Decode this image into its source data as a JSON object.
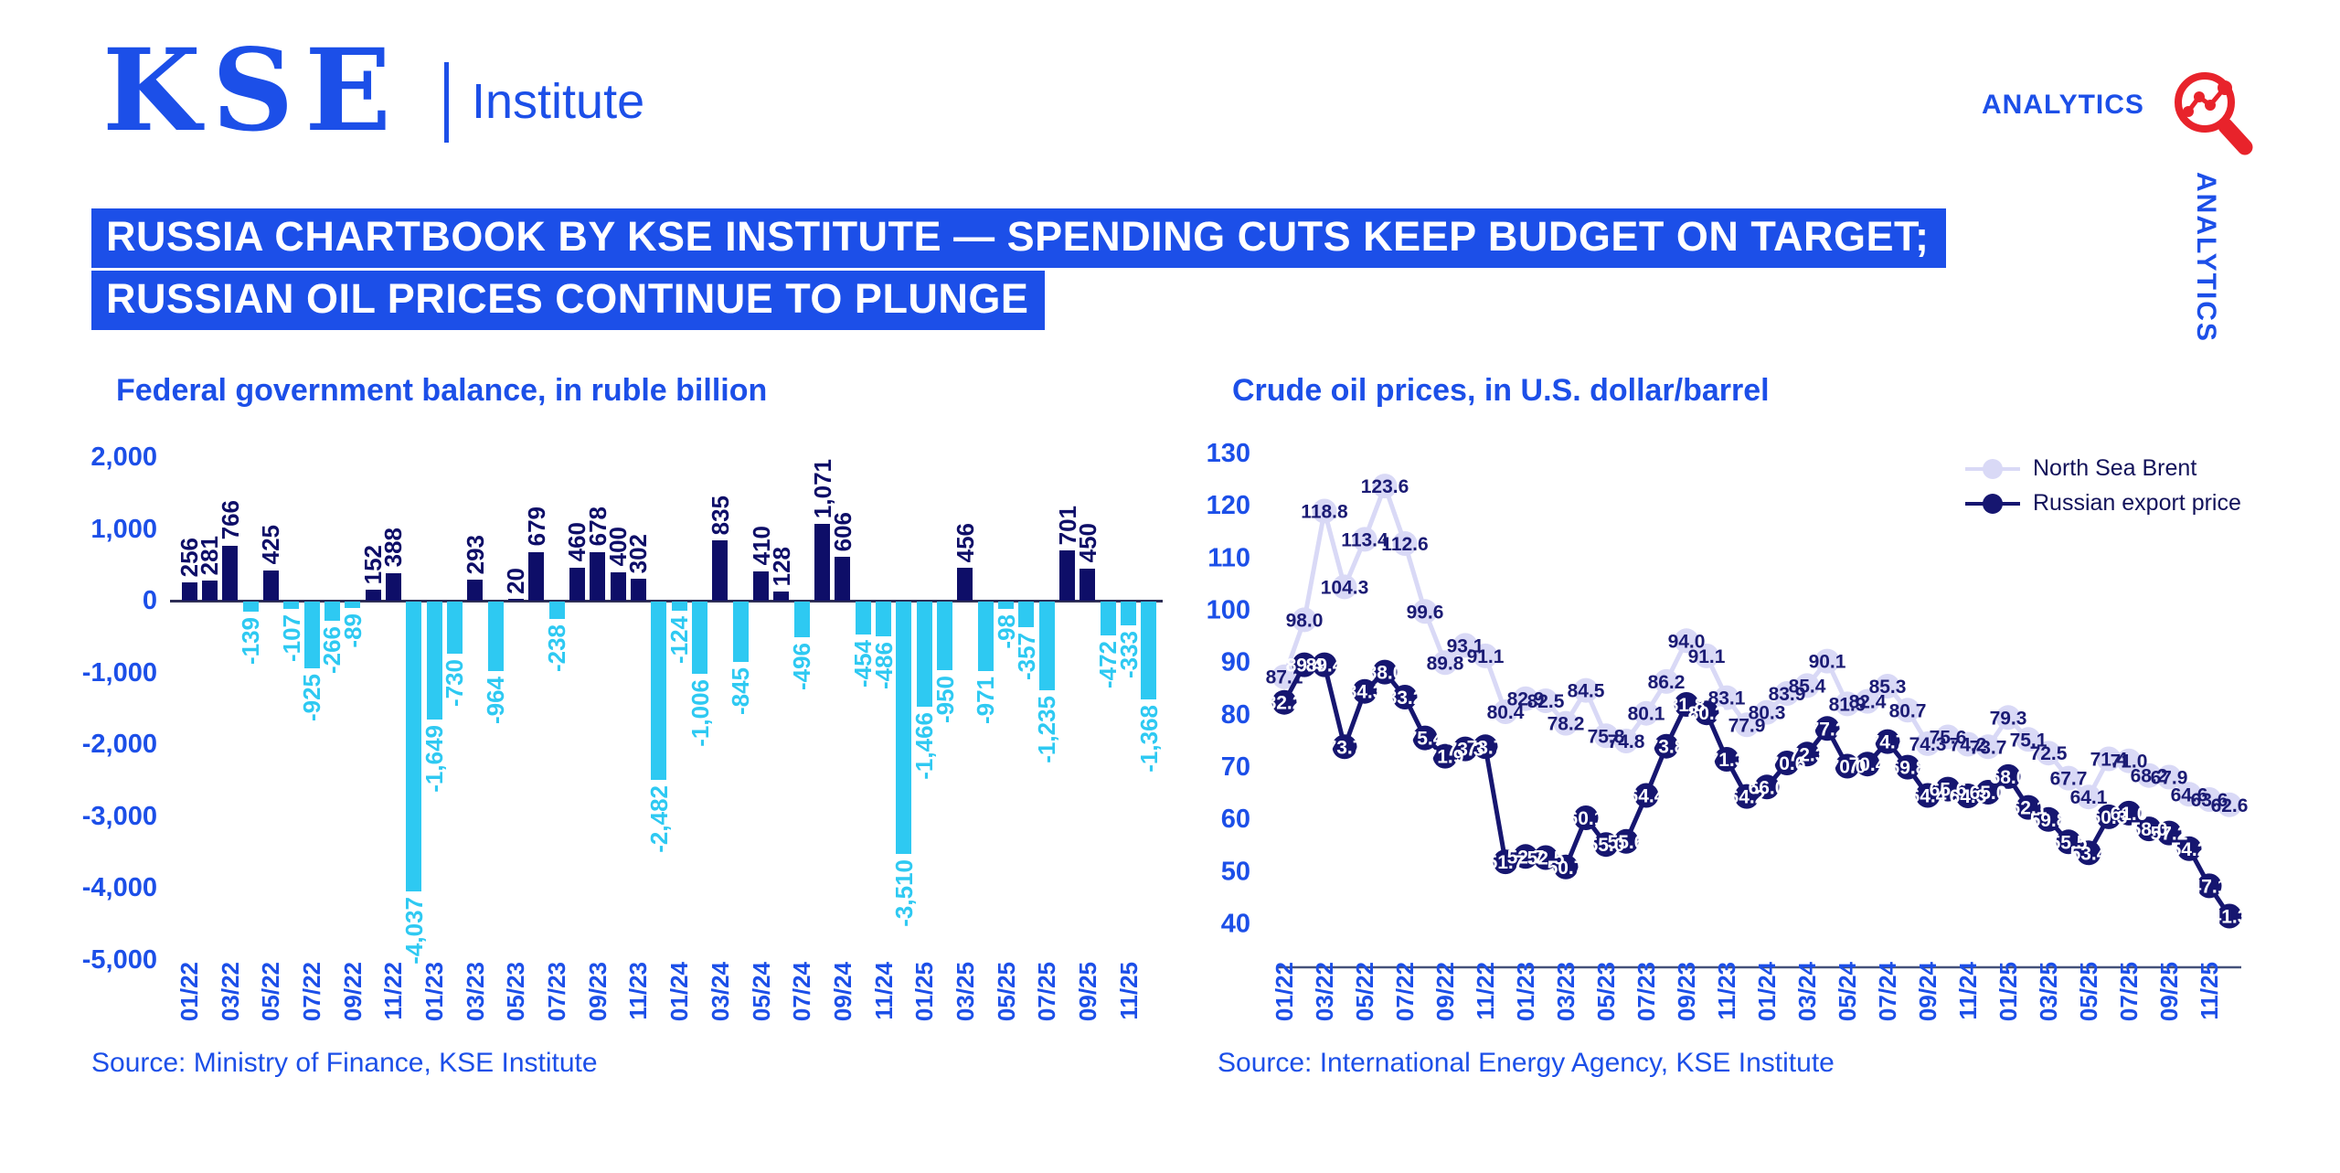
{
  "branding": {
    "logo_text": "KSE",
    "logo_subtext": "Institute",
    "analytics_label": "ANALYTICS",
    "analytics_vertical_label": "ANALYTICS"
  },
  "headline": {
    "line1": "RUSSIA CHARTBOOK BY KSE INSTITUTE — SPENDING CUTS KEEP BUDGET ON TARGET;",
    "line2": "RUSSIAN OIL PRICES CONTINUE TO PLUNGE"
  },
  "colors": {
    "brand_blue": "#1c4fe8",
    "headline_bg": "#1c4fe8",
    "bar_positive": "#0e0e68",
    "bar_negative": "#2ec9f2",
    "left_axis_line": "#2e2e55",
    "right_axis_line": "#44517a",
    "brent": "#d9d9f6",
    "brent_label": "#1b1b74",
    "russian": "#161670",
    "russian_label": "#ffffff",
    "icon_red": "#e8232b",
    "legend_text": "#12125a"
  },
  "chart_data": [
    {
      "type": "bar",
      "title": "Federal government balance, in ruble billion",
      "source": "Source: Ministry of Finance, KSE Institute",
      "ylim": [
        -5000,
        2000
      ],
      "yticks": [
        2000,
        1000,
        0,
        -1000,
        -2000,
        -3000,
        -4000,
        -5000
      ],
      "x_tick_every": 2,
      "grid": false,
      "categories": [
        "01/22",
        "02/22",
        "03/22",
        "04/22",
        "05/22",
        "06/22",
        "07/22",
        "08/22",
        "09/22",
        "10/22",
        "11/22",
        "12/22",
        "01/23",
        "02/23",
        "03/23",
        "04/23",
        "05/23",
        "06/23",
        "07/23",
        "08/23",
        "09/23",
        "10/23",
        "11/23",
        "12/23",
        "01/24",
        "02/24",
        "03/24",
        "04/24",
        "05/24",
        "06/24",
        "07/24",
        "08/24",
        "09/24",
        "10/24",
        "11/24",
        "12/24",
        "01/25",
        "02/25",
        "03/25",
        "04/25",
        "05/25",
        "06/25",
        "07/25",
        "08/25",
        "09/25",
        "10/25",
        "11/25",
        "12/25"
      ],
      "values": [
        256,
        281,
        766,
        -139,
        425,
        -107,
        -925,
        -266,
        -89,
        152,
        388,
        -4037,
        -1649,
        -730,
        293,
        -964,
        20,
        679,
        -238,
        460,
        678,
        400,
        302,
        -2482,
        -124,
        -1006,
        835,
        -845,
        410,
        128,
        -496,
        1071,
        606,
        -454,
        -486,
        -3510,
        -1466,
        -950,
        456,
        -971,
        -98,
        -357,
        -1235,
        701,
        450,
        -472,
        -333,
        -1368
      ]
    },
    {
      "type": "line",
      "title": "Crude oil prices, in U.S. dollar/barrel",
      "source": "Source: International Energy Agency, KSE Institute",
      "ylim": [
        40,
        130
      ],
      "yticks": [
        130,
        120,
        110,
        100,
        90,
        80,
        70,
        60,
        50,
        40
      ],
      "x_tick_every": 2,
      "grid": false,
      "legend_position": "upper right",
      "x": [
        "01/22",
        "02/22",
        "03/22",
        "04/22",
        "05/22",
        "06/22",
        "07/22",
        "08/22",
        "09/22",
        "10/22",
        "11/22",
        "12/22",
        "01/23",
        "02/23",
        "03/23",
        "04/23",
        "05/23",
        "06/23",
        "07/23",
        "08/23",
        "09/23",
        "10/23",
        "11/23",
        "12/23",
        "01/24",
        "02/24",
        "03/24",
        "04/24",
        "05/24",
        "06/24",
        "07/24",
        "08/24",
        "09/24",
        "10/24",
        "11/24",
        "12/24",
        "01/25",
        "02/25",
        "03/25",
        "04/25",
        "05/25",
        "06/25",
        "07/25",
        "08/25",
        "09/25",
        "10/25",
        "11/25",
        "12/25"
      ],
      "series": [
        {
          "name": "North Sea Brent",
          "color": "#d9d9f6",
          "label_color": "#1b1b74",
          "values": [
            87.1,
            98.0,
            118.8,
            104.3,
            113.4,
            123.6,
            112.6,
            99.6,
            89.8,
            93.1,
            91.1,
            80.4,
            82.9,
            82.5,
            78.2,
            84.5,
            75.8,
            74.8,
            80.1,
            86.2,
            94.0,
            91.1,
            83.1,
            77.9,
            80.3,
            83.9,
            85.4,
            90.1,
            81.9,
            82.4,
            85.3,
            80.7,
            74.3,
            75.6,
            74.2,
            73.7,
            79.3,
            75.1,
            72.5,
            67.7,
            64.1,
            71.4,
            71.0,
            68.2,
            67.9,
            64.6,
            63.6,
            62.6
          ]
        },
        {
          "name": "Russian export price",
          "color": "#161670",
          "label_color": "#ffffff",
          "values": [
            82.2,
            89.4,
            89.4,
            73.7,
            84.3,
            88.0,
            83.2,
            75.4,
            71.9,
            73.3,
            73.7,
            51.7,
            52.7,
            52.5,
            50.7,
            60.1,
            55.0,
            55.6,
            64.4,
            73.8,
            81.8,
            80.2,
            71.3,
            64.2,
            66.0,
            70.6,
            72.3,
            77.2,
            70.0,
            70.4,
            74.7,
            69.8,
            64.4,
            65.6,
            64.3,
            65.0,
            68.0,
            62.1,
            59.8,
            55.5,
            53.4,
            60.3,
            61.0,
            58.0,
            57.2,
            54.2,
            47.1,
            41.3
          ]
        }
      ]
    }
  ]
}
